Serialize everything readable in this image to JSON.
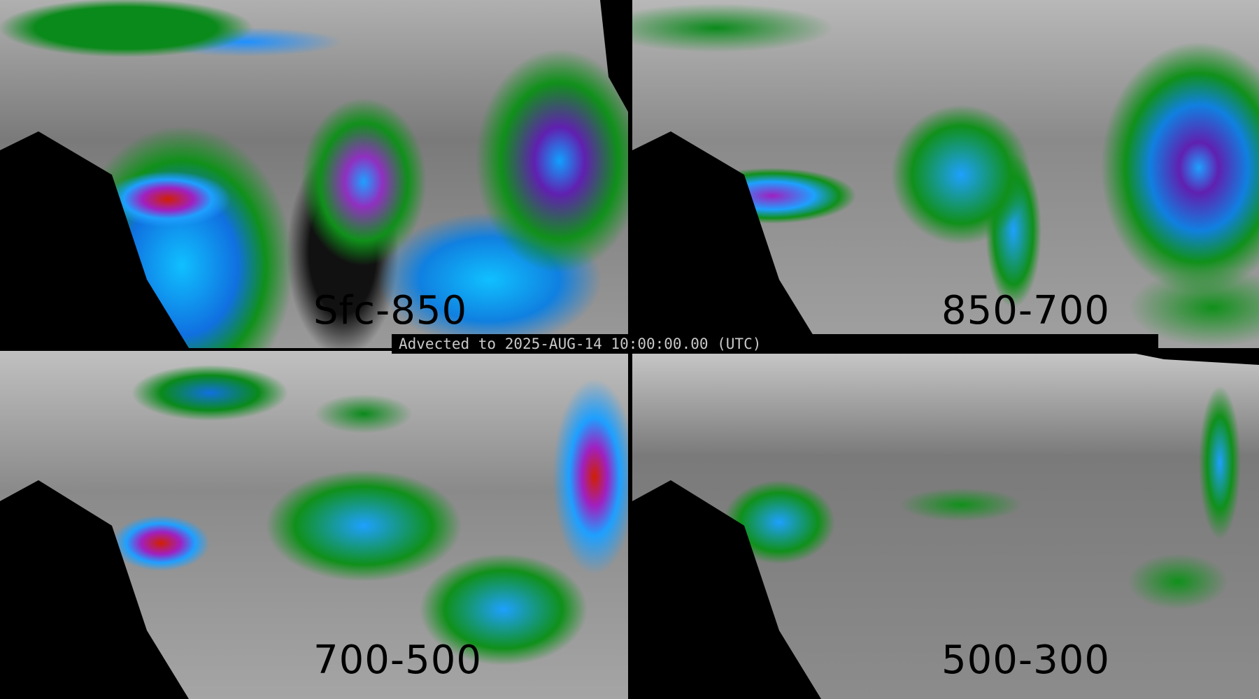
{
  "banner": {
    "text": "Advected to 2025-AUG-14 10:00:00.00 (UTC)"
  },
  "panels": [
    {
      "label": "Sfc-850"
    },
    {
      "label": "850-700"
    },
    {
      "label": "700-500"
    },
    {
      "label": "500-300"
    }
  ],
  "colors": {
    "background": "#000000",
    "low_values": "#8a8a8a",
    "green": "#0a8a1a",
    "blue": "#1e90ff",
    "cyan": "#10c0ff",
    "purple": "#a020c0",
    "red": "#d02000"
  }
}
